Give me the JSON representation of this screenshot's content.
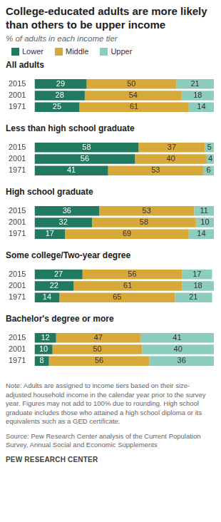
{
  "title": "College-educated adults are more likely than others to be upper income",
  "subtitle": "% of adults in each income tier",
  "note": "Note: Adults are assigned to income tiers based on their size-adjusted household income in the calendar year prior to the survey year. Figures may not add to 100% due to rounding. High school graduate includes those who attained a high school diploma or its equivalents such as a GED certificate.",
  "source": "Source: Pew Research Center analysis of the Current Population Survey, Annual Social and Economic Supplements",
  "credit": "PEW RESEARCH CENTER",
  "chart_data": [
    {
      "type": "bar",
      "title": "All adults",
      "orientation": "horizontal",
      "stacked": true,
      "data_labels": true,
      "tick_labels": "y",
      "grid": false,
      "legend": "top",
      "categories": [
        "2015",
        "2001",
        "1971"
      ],
      "series": [
        {
          "name": "Lower",
          "color": "#217a5f",
          "values": [
            29,
            28,
            25
          ]
        },
        {
          "name": "Middle",
          "color": "#d7a93a",
          "values": [
            50,
            54,
            61
          ]
        },
        {
          "name": "Upper",
          "color": "#8dcdbd",
          "values": [
            21,
            18,
            14
          ]
        }
      ]
    },
    {
      "type": "bar",
      "title": "Less than high school graduate",
      "orientation": "horizontal",
      "stacked": true,
      "data_labels": true,
      "tick_labels": "y",
      "grid": false,
      "categories": [
        "2015",
        "2001",
        "1971"
      ],
      "series": [
        {
          "name": "Lower",
          "color": "#217a5f",
          "values": [
            58,
            56,
            41
          ]
        },
        {
          "name": "Middle",
          "color": "#d7a93a",
          "values": [
            37,
            40,
            53
          ]
        },
        {
          "name": "Upper",
          "color": "#8dcdbd",
          "values": [
            5,
            4,
            6
          ]
        }
      ]
    },
    {
      "type": "bar",
      "title": "High school graduate",
      "orientation": "horizontal",
      "stacked": true,
      "data_labels": true,
      "tick_labels": "y",
      "grid": false,
      "categories": [
        "2015",
        "2001",
        "1971"
      ],
      "series": [
        {
          "name": "Lower",
          "color": "#217a5f",
          "values": [
            36,
            32,
            17
          ]
        },
        {
          "name": "Middle",
          "color": "#d7a93a",
          "values": [
            53,
            58,
            69
          ]
        },
        {
          "name": "Upper",
          "color": "#8dcdbd",
          "values": [
            11,
            10,
            14
          ]
        }
      ]
    },
    {
      "type": "bar",
      "title": "Some college/Two-year degree",
      "orientation": "horizontal",
      "stacked": true,
      "data_labels": true,
      "tick_labels": "y",
      "grid": false,
      "categories": [
        "2015",
        "2001",
        "1971"
      ],
      "series": [
        {
          "name": "Lower",
          "color": "#217a5f",
          "values": [
            27,
            22,
            14
          ]
        },
        {
          "name": "Middle",
          "color": "#d7a93a",
          "values": [
            56,
            61,
            65
          ]
        },
        {
          "name": "Upper",
          "color": "#8dcdbd",
          "values": [
            17,
            18,
            21
          ]
        }
      ]
    },
    {
      "type": "bar",
      "title": "Bachelor's degree or more",
      "orientation": "horizontal",
      "stacked": true,
      "data_labels": true,
      "tick_labels": "y",
      "grid": false,
      "categories": [
        "2015",
        "2001",
        "1971"
      ],
      "series": [
        {
          "name": "Lower",
          "color": "#217a5f",
          "values": [
            12,
            10,
            8
          ]
        },
        {
          "name": "Middle",
          "color": "#d7a93a",
          "values": [
            47,
            50,
            56
          ]
        },
        {
          "name": "Upper",
          "color": "#8dcdbd",
          "values": [
            41,
            40,
            36
          ]
        }
      ]
    }
  ]
}
